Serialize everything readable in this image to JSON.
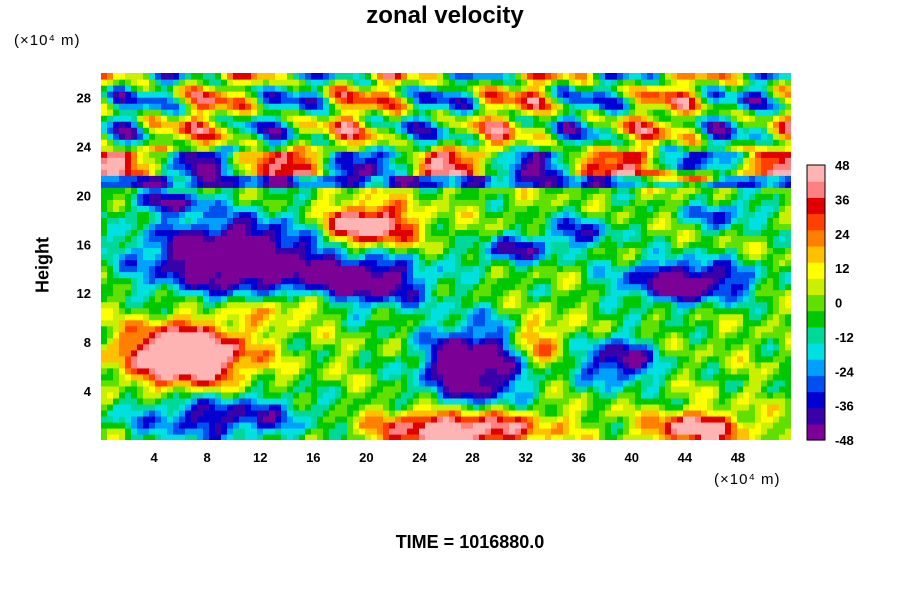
{
  "chart_data": {
    "type": "heatmap",
    "title": "zonal velocity",
    "ylabel": "Height",
    "xlabel": "",
    "x_unit": "(×10⁴ m)",
    "y_unit": "(×10⁴ m)",
    "xlim": [
      0,
      52
    ],
    "ylim": [
      0,
      30
    ],
    "x_ticks": [
      4,
      8,
      12,
      16,
      20,
      24,
      28,
      32,
      36,
      40,
      44,
      48
    ],
    "y_ticks": [
      4,
      8,
      12,
      16,
      20,
      24,
      28
    ],
    "colorbar": {
      "min": -48,
      "max": 48,
      "ticks": [
        48,
        36,
        24,
        12,
        0,
        -12,
        -24,
        -36,
        -48
      ],
      "colors": [
        "#7a0096",
        "#3a00aa",
        "#0000d2",
        "#0050f0",
        "#00a0ff",
        "#00e0e0",
        "#00d89a",
        "#00c800",
        "#60e000",
        "#c8f000",
        "#ffff00",
        "#ffc000",
        "#ff8000",
        "#ff4000",
        "#e00000",
        "#ff8080",
        "#ffb4b4"
      ]
    },
    "grid": false,
    "footer": "TIME = 1016880.0"
  }
}
